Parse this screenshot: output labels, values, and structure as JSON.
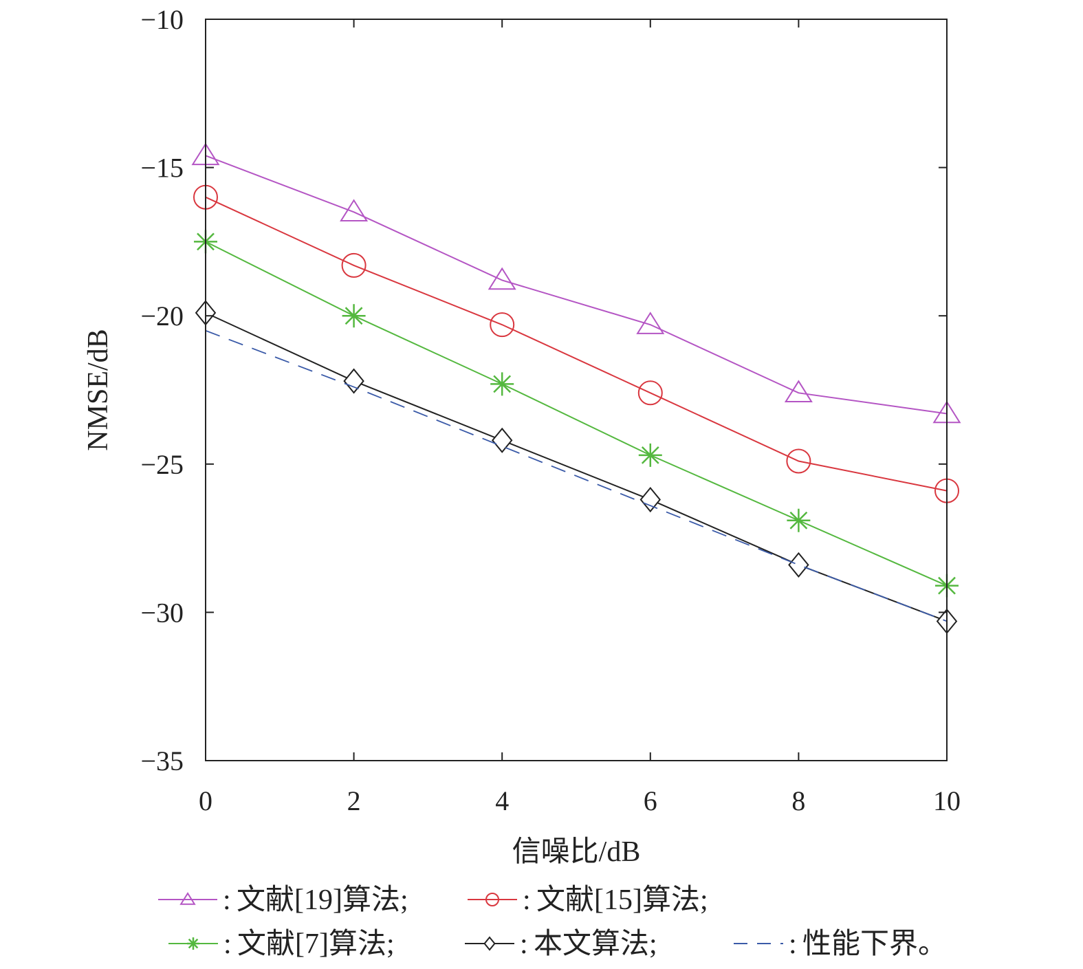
{
  "chart_data": {
    "type": "line",
    "xlabel": "信噪比/dB",
    "ylabel": "NMSE/dB",
    "xlim": [
      0,
      10
    ],
    "ylim": [
      -35,
      -10
    ],
    "xticks": [
      0,
      2,
      4,
      6,
      8,
      10
    ],
    "xtick_labels": [
      "0",
      "2",
      "4",
      "6",
      "8",
      "10"
    ],
    "yticks": [
      -35,
      -30,
      -25,
      -20,
      -15,
      -10
    ],
    "ytick_labels": [
      "−35",
      "−30",
      "−25",
      "−20",
      "−15",
      "−10"
    ],
    "grid": false,
    "legend_position": "bottom",
    "x": [
      0,
      2,
      4,
      6,
      8,
      10
    ],
    "series": [
      {
        "name": "文献[19]算法",
        "legend_text": "文献[19]算法;",
        "color": "#b455c4",
        "marker": "triangle",
        "dash": false,
        "values": [
          -14.6,
          -16.5,
          -18.8,
          -20.3,
          -22.6,
          -23.3
        ]
      },
      {
        "name": "文献[15]算法",
        "legend_text": "文献[15]算法;",
        "color": "#d9373f",
        "marker": "circle",
        "dash": false,
        "values": [
          -16.0,
          -18.3,
          -20.3,
          -22.6,
          -24.9,
          -25.9
        ]
      },
      {
        "name": "文献[7]算法",
        "legend_text": "文献[7]算法;",
        "color": "#54b83f",
        "marker": "asterisk",
        "dash": false,
        "values": [
          -17.5,
          -20.0,
          -22.3,
          -24.7,
          -26.9,
          -29.1
        ]
      },
      {
        "name": "本文算法",
        "legend_text": "本文算法;",
        "color": "#222222",
        "marker": "diamond",
        "dash": false,
        "values": [
          -19.9,
          -22.2,
          -24.2,
          -26.2,
          -28.4,
          -30.3
        ]
      },
      {
        "name": "性能下界",
        "legend_text": "性能下界。",
        "color": "#3a5aa8",
        "marker": "none",
        "dash": true,
        "values": [
          -20.5,
          -22.4,
          -24.4,
          -26.4,
          -28.4,
          -30.3
        ]
      }
    ],
    "legend_separator": ":"
  }
}
